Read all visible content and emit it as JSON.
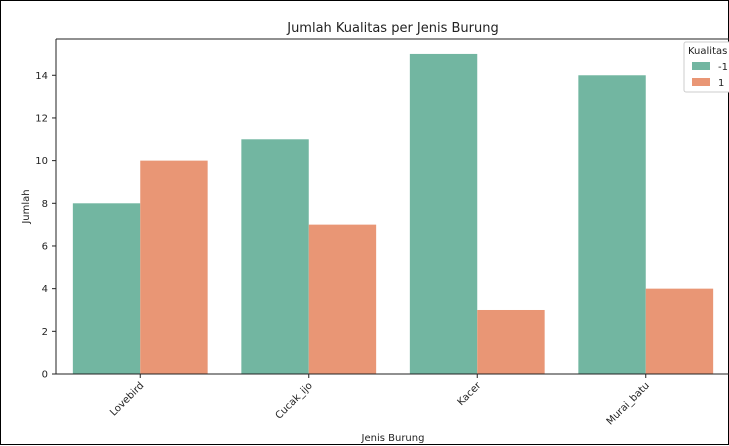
{
  "chart_data": {
    "type": "bar",
    "title": "Jumlah Kualitas per Jenis Burung",
    "xlabel": "Jenis Burung",
    "ylabel": "Jumlah",
    "categories": [
      "Lovebird",
      "Cucak_ijo",
      "Kacer",
      "Murai_batu"
    ],
    "series": [
      {
        "name": "-1",
        "values": [
          8,
          11,
          15,
          14
        ],
        "color": "#72b6a1"
      },
      {
        "name": "1",
        "values": [
          10,
          7,
          3,
          4
        ],
        "color": "#e99675"
      }
    ],
    "ylim": [
      0,
      15.7
    ],
    "yticks": [
      0,
      2,
      4,
      6,
      8,
      10,
      12,
      14
    ],
    "legend": {
      "title": "Kualitas",
      "placement": "top-right"
    },
    "grid": false
  }
}
